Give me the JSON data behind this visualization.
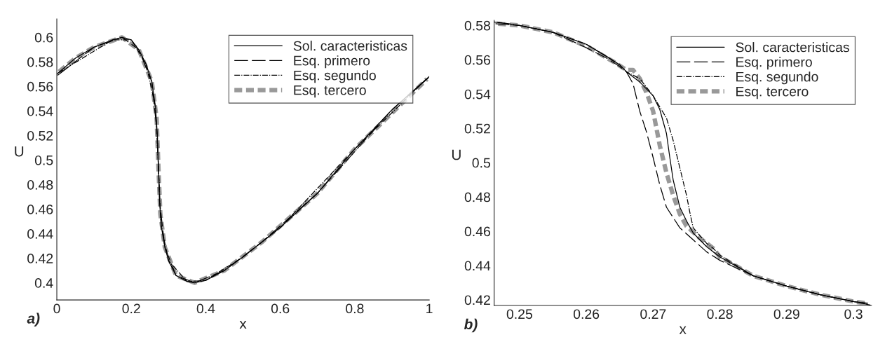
{
  "chart_data": [
    {
      "type": "line",
      "xlabel": "x",
      "ylabel": "U",
      "annotations": [
        "a)"
      ],
      "legend": "top right",
      "grid": false,
      "xlim": [
        0,
        1
      ],
      "xticks": [
        0,
        0.2,
        0.4,
        0.6,
        0.8,
        1
      ],
      "ylim": [
        0.386,
        0.615
      ],
      "yticks": [
        0.4,
        0.42,
        0.44,
        0.46,
        0.48,
        0.5,
        0.52,
        0.54,
        0.56,
        0.58,
        0.6
      ],
      "series": [
        {
          "name": "Sol. caracteristicas",
          "color": "#000000",
          "line_style": "solid",
          "x": [
            0,
            0.05,
            0.1,
            0.15,
            0.175,
            0.2,
            0.22,
            0.24,
            0.255,
            0.265,
            0.27,
            0.273,
            0.276,
            0.28,
            0.29,
            0.3,
            0.32,
            0.35,
            0.37,
            0.4,
            0.45,
            0.5,
            0.55,
            0.6,
            0.7,
            0.8,
            0.9,
            1
          ],
          "values": [
            0.57,
            0.583,
            0.592,
            0.598,
            0.6,
            0.598,
            0.59,
            0.578,
            0.564,
            0.543,
            0.52,
            0.493,
            0.466,
            0.447,
            0.429,
            0.418,
            0.406,
            0.401,
            0.4,
            0.402,
            0.41,
            0.421,
            0.433,
            0.445,
            0.473,
            0.509,
            0.541,
            0.568
          ]
        },
        {
          "name": "Esq. primero",
          "color": "#000000",
          "line_style": "dashed",
          "x": [
            0.002,
            0.1,
            0.175,
            0.22,
            0.255,
            0.27,
            0.276,
            0.29,
            0.32,
            0.37,
            0.45,
            0.55,
            0.7,
            0.9,
            0.998
          ],
          "values": [
            0.569,
            0.592,
            0.6,
            0.59,
            0.564,
            0.52,
            0.466,
            0.429,
            0.406,
            0.4,
            0.41,
            0.433,
            0.473,
            0.541,
            0.567
          ]
        },
        {
          "name": "Esq. segundo",
          "color": "#000000",
          "line_style": "dashdot",
          "x": [
            0.004,
            0.15,
            0.2,
            0.24,
            0.265,
            0.273,
            0.28,
            0.3,
            0.35,
            0.4,
            0.5,
            0.6,
            0.8,
            0.996
          ],
          "values": [
            0.571,
            0.598,
            0.598,
            0.578,
            0.543,
            0.493,
            0.447,
            0.418,
            0.401,
            0.402,
            0.421,
            0.445,
            0.509,
            0.567
          ]
        },
        {
          "name": "Esq. tercero",
          "color": "#999999",
          "line_style": "dashed",
          "x": [
            0.006,
            0.05,
            0.1,
            0.175,
            0.22,
            0.255,
            0.268,
            0.273,
            0.278,
            0.29,
            0.32,
            0.37,
            0.45,
            0.55,
            0.7,
            0.8,
            0.994
          ],
          "values": [
            0.572,
            0.583,
            0.592,
            0.6,
            0.59,
            0.564,
            0.534,
            0.493,
            0.456,
            0.429,
            0.406,
            0.4,
            0.41,
            0.433,
            0.473,
            0.509,
            0.566
          ]
        }
      ]
    },
    {
      "type": "line",
      "xlabel": "x",
      "ylabel": "U",
      "annotations": [
        "b)"
      ],
      "legend": "top right",
      "grid": false,
      "xlim": [
        0.2462,
        0.3027
      ],
      "xticks": [
        0.25,
        0.26,
        0.27,
        0.28,
        0.29,
        0.3
      ],
      "ylim": [
        0.4167,
        0.583
      ],
      "yticks": [
        0.42,
        0.44,
        0.46,
        0.48,
        0.5,
        0.52,
        0.54,
        0.56,
        0.58
      ],
      "series": [
        {
          "name": "Sol. caracteristicas",
          "color": "#000000",
          "line_style": "solid",
          "x": [
            0.2462,
            0.25,
            0.255,
            0.26,
            0.263,
            0.265,
            0.266,
            0.268,
            0.27,
            0.271,
            0.272,
            0.2725,
            0.273,
            0.274,
            0.275,
            0.276,
            0.278,
            0.28,
            0.285,
            0.29,
            0.295,
            0.3,
            0.3025
          ],
          "values": [
            0.582,
            0.58,
            0.576,
            0.569,
            0.562,
            0.557,
            0.553,
            0.547,
            0.539,
            0.531,
            0.517,
            0.503,
            0.49,
            0.474,
            0.466,
            0.459,
            0.451,
            0.445,
            0.434,
            0.428,
            0.423,
            0.419,
            0.417
          ]
        },
        {
          "name": "Esq. primero",
          "color": "#000000",
          "line_style": "dashed",
          "x": [
            0.2464,
            0.25,
            0.255,
            0.26,
            0.263,
            0.265,
            0.266,
            0.267,
            0.268,
            0.269,
            0.27,
            0.271,
            0.272,
            0.274,
            0.276,
            0.278,
            0.28,
            0.285,
            0.29,
            0.295,
            0.3,
            0.3022
          ],
          "values": [
            0.581,
            0.58,
            0.576,
            0.567,
            0.561,
            0.556,
            0.553,
            0.546,
            0.53,
            0.518,
            0.503,
            0.487,
            0.474,
            0.462,
            0.455,
            0.448,
            0.443,
            0.434,
            0.428,
            0.423,
            0.419,
            0.418
          ]
        },
        {
          "name": "Esq. segundo",
          "color": "#000000",
          "line_style": "dashdot",
          "x": [
            0.2466,
            0.25,
            0.255,
            0.26,
            0.263,
            0.265,
            0.266,
            0.268,
            0.27,
            0.272,
            0.273,
            0.274,
            0.275,
            0.2755,
            0.276,
            0.278,
            0.279,
            0.28,
            0.285,
            0.29,
            0.295,
            0.3,
            0.302
          ],
          "values": [
            0.582,
            0.58,
            0.576,
            0.569,
            0.562,
            0.557,
            0.553,
            0.549,
            0.539,
            0.526,
            0.513,
            0.497,
            0.481,
            0.471,
            0.462,
            0.453,
            0.45,
            0.446,
            0.434,
            0.428,
            0.423,
            0.419,
            0.418
          ]
        },
        {
          "name": "Esq. tercero",
          "color": "#999999",
          "line_style": "dashed",
          "x": [
            0.2468,
            0.25,
            0.255,
            0.26,
            0.264,
            0.266,
            0.267,
            0.268,
            0.269,
            0.27,
            0.271,
            0.272,
            0.273,
            0.274,
            0.275,
            0.277,
            0.279,
            0.28,
            0.285,
            0.29,
            0.295,
            0.3,
            0.3018
          ],
          "values": [
            0.581,
            0.58,
            0.576,
            0.568,
            0.559,
            0.554,
            0.554,
            0.549,
            0.541,
            0.53,
            0.51,
            0.494,
            0.481,
            0.47,
            0.463,
            0.456,
            0.45,
            0.445,
            0.434,
            0.428,
            0.423,
            0.419,
            0.418
          ]
        }
      ]
    }
  ]
}
